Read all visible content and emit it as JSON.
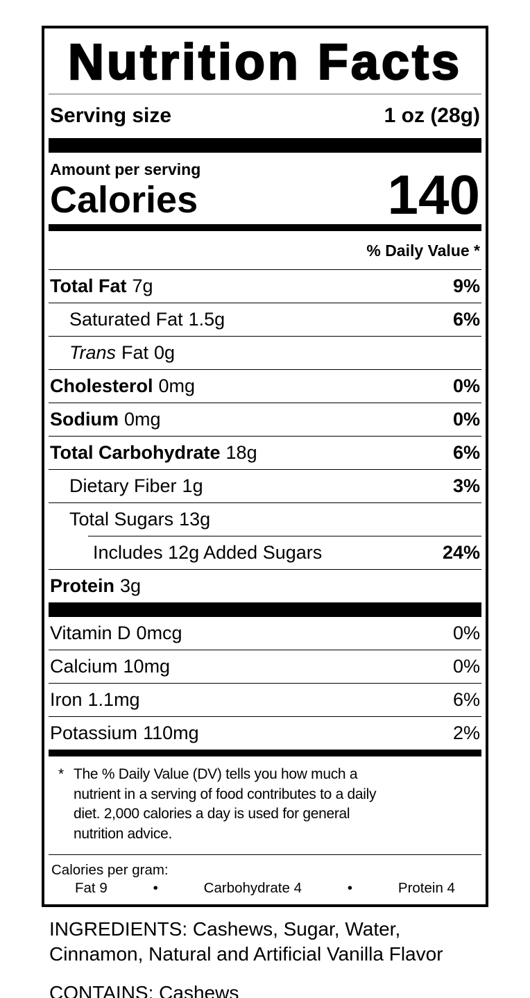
{
  "colors": {
    "text": "#000000",
    "background": "#ffffff"
  },
  "label": {
    "title": "Nutrition Facts",
    "serving_size": {
      "label": "Serving size",
      "value": "1 oz (28g)"
    },
    "calories": {
      "eyebrow": "Amount per serving",
      "label": "Calories",
      "value": "140"
    },
    "daily_value_header": "% Daily Value *",
    "nutrients": [
      {
        "name": "Total Fat",
        "amount": "7g",
        "dv": "9%"
      },
      {
        "name": "Saturated Fat",
        "amount": "1.5g",
        "dv": "6%"
      },
      {
        "name_italic": "Trans",
        "name": "Fat",
        "amount": "0g",
        "dv": ""
      },
      {
        "name": "Cholesterol",
        "amount": "0mg",
        "dv": "0%"
      },
      {
        "name": "Sodium",
        "amount": "0mg",
        "dv": "0%"
      },
      {
        "name": "Total Carbohydrate",
        "amount": "18g",
        "dv": "6%"
      },
      {
        "name": "Dietary Fiber",
        "amount": "1g",
        "dv": "3%"
      },
      {
        "name": "Total Sugars",
        "amount": "13g",
        "dv": ""
      },
      {
        "name": "Includes 12g Added Sugars",
        "amount": "",
        "dv": "24%"
      },
      {
        "name": "Protein",
        "amount": "3g",
        "dv": ""
      }
    ],
    "micronutrients": [
      {
        "name": "Vitamin D",
        "amount": "0mcg",
        "dv": "0%"
      },
      {
        "name": "Calcium",
        "amount": "10mg",
        "dv": "0%"
      },
      {
        "name": "Iron",
        "amount": "1.1mg",
        "dv": "6%"
      },
      {
        "name": "Potassium",
        "amount": "110mg",
        "dv": "2%"
      }
    ],
    "footnote": {
      "marker": "*",
      "text": "The % Daily Value (DV) tells you how much a nutrient in a serving of food contributes to a daily diet. 2,000 calories a day is used for general nutrition advice."
    },
    "calories_per_gram": {
      "label": "Calories per gram:",
      "fat": "Fat 9",
      "carbohydrate": "Carbohydrate 4",
      "protein": "Protein 4",
      "separator": "•"
    }
  },
  "ingredients_section": {
    "ingredients_line": "INGREDIENTS: Cashews, Sugar, Water, Cinnamon, Natural and Artificial Vanilla Flavor",
    "contains_line": "CONTAINS: Cashews"
  }
}
